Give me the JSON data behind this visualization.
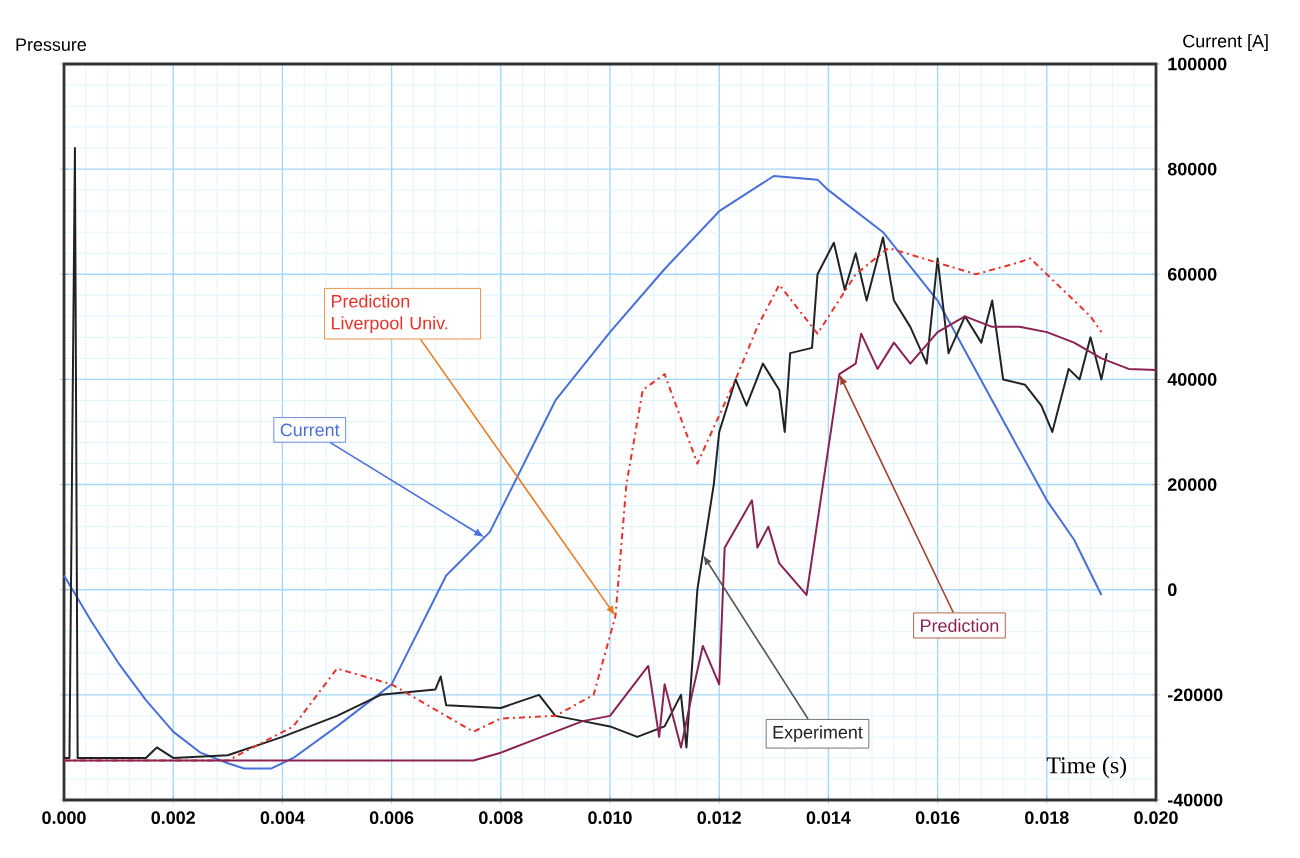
{
  "chart_data": {
    "type": "line",
    "xlabel": "Time (s)",
    "ylabel": "Pressure",
    "y2label": "Current [A]",
    "xlim": [
      0,
      0.02
    ],
    "xticks": [
      {
        "value": 0,
        "label": "0.000"
      },
      {
        "value": 0.002,
        "label": "0.002"
      },
      {
        "value": 0.004,
        "label": "0.004"
      },
      {
        "value": 0.006,
        "label": "0.006"
      },
      {
        "value": 0.008,
        "label": "0.008"
      },
      {
        "value": 0.01,
        "label": "0.010"
      },
      {
        "value": 0.012,
        "label": "0.012"
      },
      {
        "value": 0.014,
        "label": "0.014"
      },
      {
        "value": 0.016,
        "label": "0.016"
      },
      {
        "value": 0.018,
        "label": "0.018"
      },
      {
        "value": 0.02,
        "label": "0.020"
      }
    ],
    "y2lim": [
      -40000,
      100000
    ],
    "y2ticks": [
      -40000,
      -20000,
      0,
      20000,
      40000,
      60000,
      80000,
      100000
    ],
    "grid": true,
    "legend": false,
    "marker": "none",
    "series": [
      {
        "name": "Current",
        "color": "#4a6fd8",
        "axis": "y2",
        "line_style": "solid",
        "x": [
          0,
          0.0005,
          0.001,
          0.0015,
          0.002,
          0.0025,
          0.003,
          0.0033,
          0.0038,
          0.0042,
          0.005,
          0.006,
          0.007,
          0.0078,
          0.009,
          0.01,
          0.011,
          0.012,
          0.013,
          0.0138,
          0.014,
          0.015,
          0.016,
          0.017,
          0.018,
          0.0185,
          0.019
        ],
        "values": [
          2700,
          -6000,
          -14000,
          -21000,
          -27000,
          -31000,
          -33000,
          -34000,
          -34000,
          -32000,
          -26000,
          -18000,
          2700,
          11000,
          36000,
          49000,
          61000,
          72000,
          78700,
          78000,
          76000,
          68000,
          55000,
          36000,
          17000,
          9500,
          -1000
        ]
      },
      {
        "name": "Experiment",
        "color": "#222222",
        "axis": "y2",
        "line_style": "solid",
        "x": [
          0,
          0.0001,
          0.0002,
          0.00025,
          0.0015,
          0.0017,
          0.002,
          0.003,
          0.004,
          0.005,
          0.0058,
          0.0068,
          0.0069,
          0.007,
          0.008,
          0.0087,
          0.009,
          0.0095,
          0.01,
          0.0105,
          0.011,
          0.0113,
          0.0114,
          0.0116,
          0.0119,
          0.012,
          0.0123,
          0.0125,
          0.0128,
          0.0131,
          0.0132,
          0.0133,
          0.0137,
          0.0138,
          0.0141,
          0.0143,
          0.0145,
          0.0147,
          0.015,
          0.0152,
          0.0155,
          0.0158,
          0.016,
          0.0162,
          0.0165,
          0.0168,
          0.017,
          0.0172,
          0.0176,
          0.0179,
          0.0181,
          0.0184,
          0.0186,
          0.0188,
          0.019,
          0.0191
        ],
        "values": [
          -32000,
          -32000,
          84000,
          -32000,
          -32000,
          -30000,
          -32000,
          -31500,
          -28000,
          -24000,
          -20000,
          -19000,
          -16500,
          -22000,
          -22500,
          -20000,
          -24000,
          -25000,
          -26000,
          -28000,
          -26000,
          -20000,
          -30000,
          0,
          20000,
          30000,
          40000,
          35000,
          43000,
          38000,
          30000,
          45000,
          46000,
          60000,
          66000,
          57000,
          64000,
          55000,
          67000,
          55000,
          50000,
          43000,
          63000,
          45000,
          52000,
          47000,
          55000,
          40000,
          39000,
          35000,
          30000,
          42000,
          40000,
          48000,
          40000,
          45000
        ]
      },
      {
        "name": "Prediction Liverpool Univ.",
        "color": "#e8322a",
        "axis": "y2",
        "line_style": "dashed",
        "x": [
          0,
          0.003,
          0.0042,
          0.005,
          0.006,
          0.007,
          0.0075,
          0.008,
          0.009,
          0.0097,
          0.0101,
          0.0103,
          0.0106,
          0.011,
          0.0116,
          0.0123,
          0.0127,
          0.0131,
          0.0138,
          0.0145,
          0.0151,
          0.0167,
          0.0174,
          0.0177,
          0.0183,
          0.0188,
          0.019
        ],
        "values": [
          -32500,
          -32500,
          -26000,
          -15000,
          -18000,
          -24000,
          -27000,
          -24500,
          -24000,
          -20000,
          -5000,
          20000,
          38000,
          41000,
          24000,
          40000,
          50000,
          58000,
          48700,
          60000,
          65000,
          60000,
          62000,
          63000,
          57000,
          52000,
          49000
        ]
      },
      {
        "name": "Prediction",
        "color": "#8b2252",
        "axis": "y2",
        "line_style": "solid",
        "x": [
          0,
          0.0075,
          0.008,
          0.0085,
          0.009,
          0.0095,
          0.01,
          0.0107,
          0.0109,
          0.011,
          0.0113,
          0.0115,
          0.0117,
          0.012,
          0.0121,
          0.0126,
          0.0127,
          0.0129,
          0.0131,
          0.0136,
          0.0139,
          0.0142,
          0.0145,
          0.0146,
          0.0149,
          0.0152,
          0.0155,
          0.016,
          0.0165,
          0.017,
          0.0175,
          0.018,
          0.0185,
          0.019,
          0.0195,
          0.02
        ],
        "values": [
          -32500,
          -32500,
          -31000,
          -29000,
          -27000,
          -25000,
          -24000,
          -14500,
          -28000,
          -18000,
          -30000,
          -20000,
          -10700,
          -18000,
          8000,
          17000,
          8000,
          12000,
          5000,
          -1000,
          20000,
          41000,
          43000,
          48700,
          42000,
          47000,
          43000,
          49000,
          52000,
          50000,
          50000,
          49000,
          47000,
          44000,
          42000,
          41800
        ]
      }
    ]
  }
}
